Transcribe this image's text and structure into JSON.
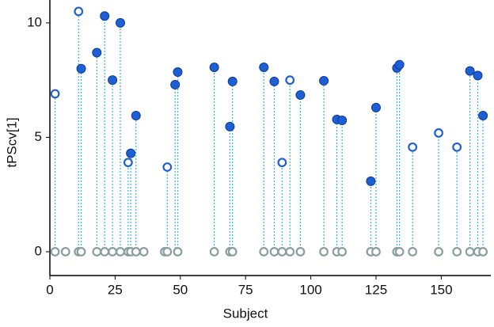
{
  "chart_data": {
    "type": "scatter",
    "xlabel": "Subject",
    "ylabel": "tPScv[1]",
    "xlim": [
      0,
      169
    ],
    "ylim": [
      -1.04,
      11
    ],
    "xticks": [
      0,
      25,
      50,
      75,
      100,
      125,
      150
    ],
    "yticks": [
      0,
      5,
      10
    ],
    "stems": true,
    "stem_color": "#30b8e0",
    "series": [
      {
        "marker": "filled",
        "color": "#1f5fd6",
        "x": [
          12,
          18,
          21,
          24,
          27,
          31,
          33,
          48,
          49,
          63,
          69,
          70,
          82,
          86,
          96,
          105,
          110,
          112,
          123,
          125,
          133,
          134,
          161,
          164,
          166
        ],
        "values": [
          8.0,
          8.7,
          10.3,
          7.5,
          10.0,
          4.3,
          5.95,
          7.3,
          7.85,
          8.06,
          5.47,
          7.44,
          8.06,
          7.44,
          6.85,
          7.47,
          5.78,
          5.74,
          3.08,
          6.3,
          8.03,
          8.17,
          7.9,
          7.7,
          5.95
        ]
      },
      {
        "marker": "open",
        "color": "#1f5fd6",
        "x": [
          2,
          11,
          30,
          45,
          89,
          92,
          139,
          149,
          156
        ],
        "values": [
          6.9,
          10.5,
          3.9,
          3.7,
          3.9,
          7.5,
          4.57,
          5.19,
          4.57
        ]
      },
      {
        "marker": "open",
        "color": "#8a9e9e",
        "x": [
          2,
          6,
          11,
          12,
          18,
          21,
          24,
          27,
          30,
          31,
          33,
          36,
          44,
          45,
          49,
          63,
          69,
          70,
          82,
          86,
          89,
          92,
          96,
          105,
          110,
          112,
          123,
          125,
          133,
          134,
          139,
          149,
          156,
          161,
          164,
          166
        ],
        "values": [
          0,
          0,
          0,
          0,
          0,
          0,
          0,
          0,
          0,
          0,
          0,
          0,
          0,
          0,
          0,
          0,
          0,
          0,
          0,
          0,
          0,
          0,
          0,
          0,
          0,
          0,
          0,
          0,
          0,
          0,
          0,
          0,
          0,
          0,
          0,
          0
        ]
      }
    ]
  }
}
